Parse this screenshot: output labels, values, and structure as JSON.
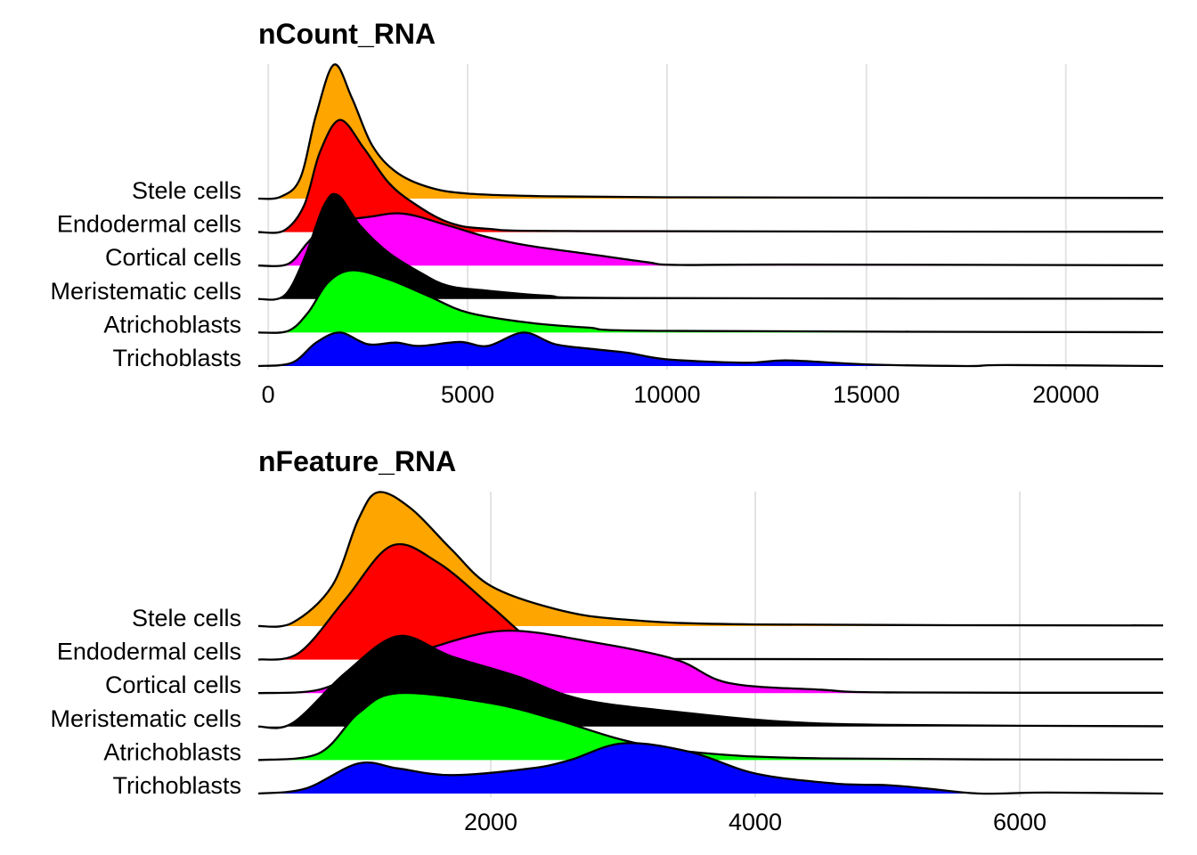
{
  "chart_data": [
    {
      "type": "ridgeline",
      "title": "nCount_RNA",
      "xlim": [
        -250,
        22440
      ],
      "xticks": [
        0,
        5000,
        10000,
        15000,
        20000
      ],
      "xtick_labels": [
        "0",
        "5000",
        "10000",
        "15000",
        "20000"
      ],
      "grid": true,
      "categories": [
        "Stele cells",
        "Endodermal cells",
        "Cortical cells",
        "Meristematic cells",
        "Atrichoblasts",
        "Trichoblasts"
      ],
      "series": [
        {
          "name": "Stele cells",
          "color": "#FFA500",
          "density": [
            [
              -250,
              0
            ],
            [
              300,
              0.05
            ],
            [
              800,
              0.6
            ],
            [
              1200,
              2.5
            ],
            [
              1650,
              4.0
            ],
            [
              2100,
              3.0
            ],
            [
              2600,
              1.6
            ],
            [
              3200,
              0.8
            ],
            [
              4000,
              0.35
            ],
            [
              5000,
              0.15
            ],
            [
              7000,
              0.07
            ],
            [
              10000,
              0.04
            ],
            [
              15000,
              0.03
            ],
            [
              22440,
              0.02
            ]
          ]
        },
        {
          "name": "Endodermal cells",
          "color": "#FF0000",
          "density": [
            [
              -250,
              0
            ],
            [
              400,
              0.05
            ],
            [
              900,
              0.8
            ],
            [
              1300,
              2.4
            ],
            [
              1800,
              3.35
            ],
            [
              2400,
              2.5
            ],
            [
              3000,
              1.5
            ],
            [
              3600,
              0.9
            ],
            [
              4500,
              0.3
            ],
            [
              5500,
              0.1
            ],
            [
              8000,
              0.03
            ],
            [
              22440,
              0.01
            ]
          ]
        },
        {
          "name": "Cortical cells",
          "color": "#FF00FF",
          "density": [
            [
              -250,
              0
            ],
            [
              500,
              0.05
            ],
            [
              1000,
              0.7
            ],
            [
              1500,
              1.25
            ],
            [
              2500,
              1.45
            ],
            [
              3400,
              1.55
            ],
            [
              4500,
              1.2
            ],
            [
              5500,
              0.85
            ],
            [
              6500,
              0.6
            ],
            [
              8000,
              0.35
            ],
            [
              9500,
              0.1
            ],
            [
              10200,
              0.02
            ],
            [
              13000,
              0.03
            ],
            [
              22440,
              0.01
            ]
          ]
        },
        {
          "name": "Meristematic cells",
          "color": "#000000",
          "density": [
            [
              -250,
              0
            ],
            [
              400,
              0.1
            ],
            [
              900,
              1.2
            ],
            [
              1400,
              2.8
            ],
            [
              1750,
              3.1
            ],
            [
              2300,
              2.2
            ],
            [
              3000,
              1.4
            ],
            [
              3800,
              0.8
            ],
            [
              4500,
              0.4
            ],
            [
              5500,
              0.25
            ],
            [
              7000,
              0.1
            ],
            [
              9000,
              0.03
            ],
            [
              22440,
              0.01
            ]
          ]
        },
        {
          "name": "Atrichoblasts",
          "color": "#00FF00",
          "density": [
            [
              -250,
              0
            ],
            [
              500,
              0.05
            ],
            [
              1000,
              0.6
            ],
            [
              1500,
              1.5
            ],
            [
              2100,
              1.86
            ],
            [
              3000,
              1.6
            ],
            [
              4000,
              1.1
            ],
            [
              5000,
              0.6
            ],
            [
              6500,
              0.3
            ],
            [
              8000,
              0.15
            ],
            [
              10000,
              0.05
            ],
            [
              22440,
              0.01
            ]
          ]
        },
        {
          "name": "Trichoblasts",
          "color": "#0000FF",
          "density": [
            [
              -250,
              0
            ],
            [
              600,
              0.1
            ],
            [
              1200,
              0.7
            ],
            [
              1800,
              1.0
            ],
            [
              2500,
              0.65
            ],
            [
              3200,
              0.7
            ],
            [
              3800,
              0.6
            ],
            [
              4800,
              0.72
            ],
            [
              5500,
              0.6
            ],
            [
              6400,
              1.0
            ],
            [
              7200,
              0.65
            ],
            [
              8200,
              0.5
            ],
            [
              9000,
              0.4
            ],
            [
              10000,
              0.2
            ],
            [
              12000,
              0.1
            ],
            [
              13000,
              0.17
            ],
            [
              15000,
              0.05
            ],
            [
              17500,
              0.0
            ],
            [
              18500,
              0.03
            ],
            [
              22440,
              0.0
            ]
          ]
        }
      ]
    },
    {
      "type": "ridgeline",
      "title": "nFeature_RNA",
      "xlim": [
        242,
        7084
      ],
      "xticks": [
        2000,
        4000,
        6000
      ],
      "xtick_labels": [
        "2000",
        "4000",
        "6000"
      ],
      "grid": true,
      "categories": [
        "Stele cells",
        "Endodermal cells",
        "Cortical cells",
        "Meristematic cells",
        "Atrichoblasts",
        "Trichoblasts"
      ],
      "series": [
        {
          "name": "Stele cells",
          "color": "#FFA500",
          "density": [
            [
              242,
              0
            ],
            [
              500,
              0.1
            ],
            [
              800,
              1.2
            ],
            [
              1000,
              3.2
            ],
            [
              1150,
              4.0
            ],
            [
              1400,
              3.5
            ],
            [
              1700,
              2.3
            ],
            [
              2000,
              1.2
            ],
            [
              2500,
              0.5
            ],
            [
              3000,
              0.2
            ],
            [
              4000,
              0.05
            ],
            [
              7084,
              0.02
            ]
          ]
        },
        {
          "name": "Endodermal cells",
          "color": "#FF0000",
          "density": [
            [
              242,
              0
            ],
            [
              550,
              0.2
            ],
            [
              900,
              1.8
            ],
            [
              1250,
              3.4
            ],
            [
              1600,
              2.9
            ],
            [
              2000,
              1.6
            ],
            [
              2300,
              0.6
            ],
            [
              2600,
              0.1
            ],
            [
              3000,
              0.02
            ],
            [
              7084,
              0.01
            ]
          ]
        },
        {
          "name": "Cortical cells",
          "color": "#FF00FF",
          "density": [
            [
              242,
              0
            ],
            [
              700,
              0.1
            ],
            [
              1100,
              0.8
            ],
            [
              1500,
              1.3
            ],
            [
              2100,
              1.86
            ],
            [
              2800,
              1.5
            ],
            [
              3400,
              1.0
            ],
            [
              3800,
              0.3
            ],
            [
              4500,
              0.1
            ],
            [
              5000,
              0.02
            ],
            [
              7084,
              0.01
            ]
          ]
        },
        {
          "name": "Meristematic cells",
          "color": "#000000",
          "density": [
            [
              242,
              0
            ],
            [
              500,
              0.1
            ],
            [
              900,
              1.6
            ],
            [
              1300,
              2.7
            ],
            [
              1700,
              2.1
            ],
            [
              2200,
              1.5
            ],
            [
              2700,
              0.8
            ],
            [
              3500,
              0.4
            ],
            [
              4200,
              0.15
            ],
            [
              5000,
              0.05
            ],
            [
              7084,
              0.01
            ]
          ]
        },
        {
          "name": "Atrichoblasts",
          "color": "#00FF00",
          "density": [
            [
              242,
              0
            ],
            [
              700,
              0.2
            ],
            [
              1000,
              1.4
            ],
            [
              1300,
              2.0
            ],
            [
              2000,
              1.7
            ],
            [
              2500,
              1.2
            ],
            [
              3000,
              0.6
            ],
            [
              3500,
              0.25
            ],
            [
              4500,
              0.05
            ],
            [
              7084,
              0.01
            ]
          ]
        },
        {
          "name": "Trichoblasts",
          "color": "#0000FF",
          "density": [
            [
              242,
              0
            ],
            [
              600,
              0.15
            ],
            [
              1000,
              0.9
            ],
            [
              1300,
              0.75
            ],
            [
              1700,
              0.55
            ],
            [
              2300,
              0.75
            ],
            [
              2600,
              1.0
            ],
            [
              3000,
              1.5
            ],
            [
              3500,
              1.25
            ],
            [
              4000,
              0.6
            ],
            [
              4600,
              0.3
            ],
            [
              5000,
              0.25
            ],
            [
              5300,
              0.15
            ],
            [
              5700,
              0.0
            ],
            [
              6200,
              0.03
            ],
            [
              7084,
              0.0
            ]
          ]
        }
      ]
    }
  ]
}
